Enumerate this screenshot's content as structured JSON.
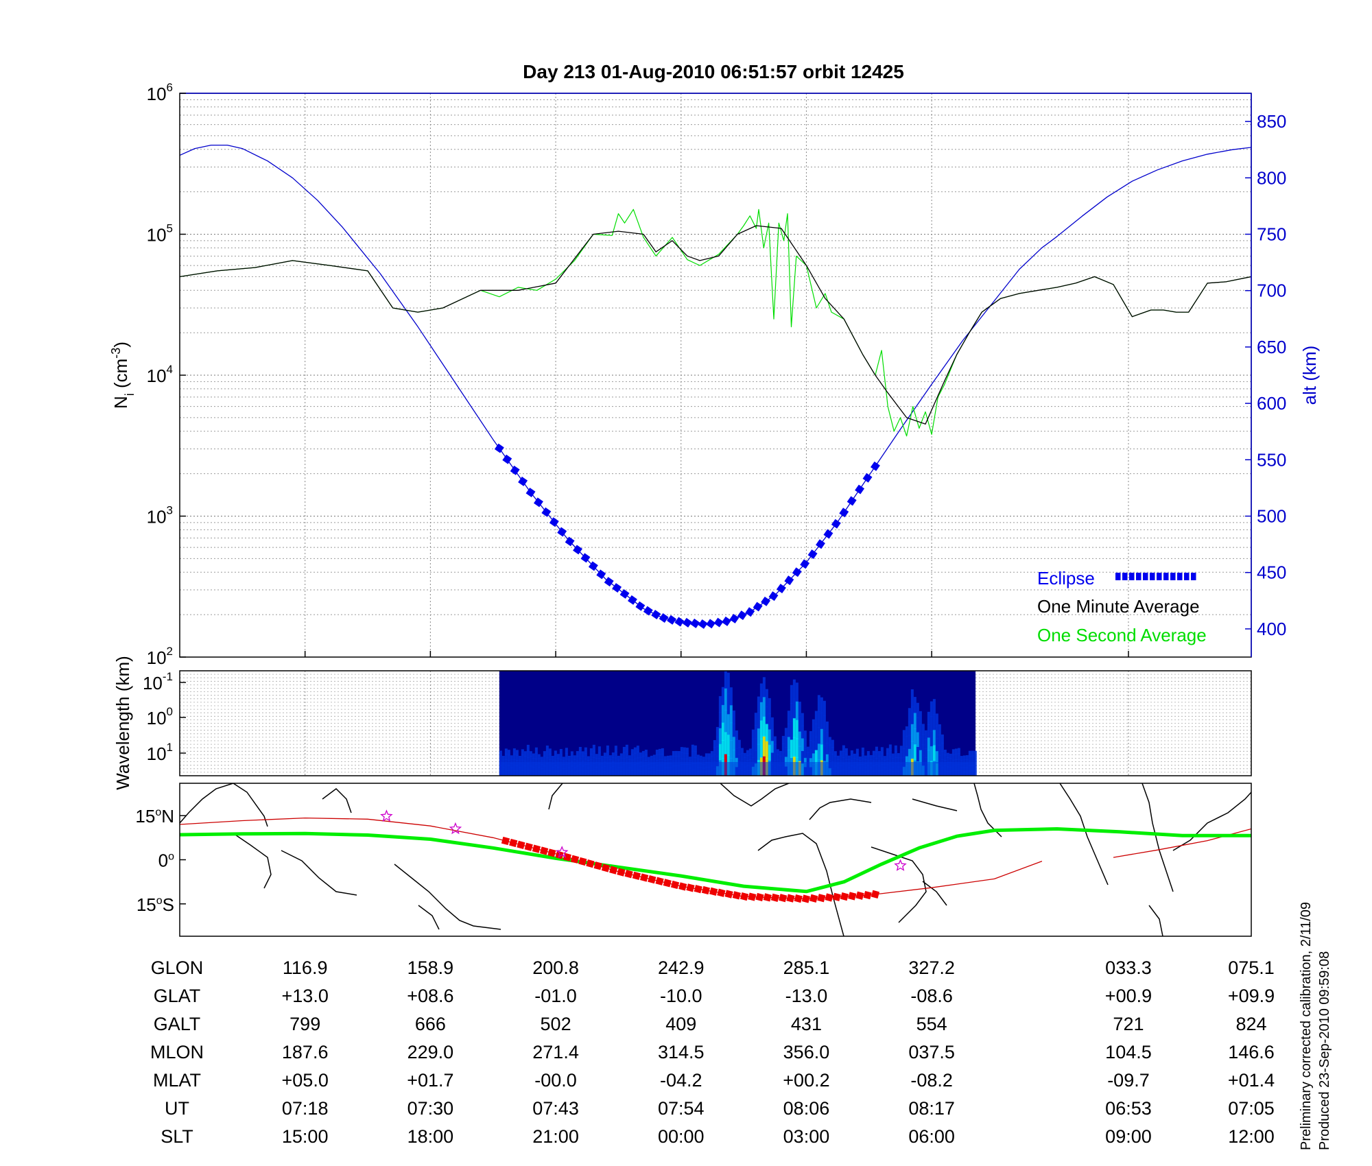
{
  "title": "Day 213  01-Aug-2010 06:51:57   orbit 12425",
  "chart_data": [
    {
      "type": "line",
      "panel": "density",
      "ylabel_main": "N",
      "ylabel_sub": "i",
      "ylabel_unit": " (cm",
      "ylabel_exp": "-3",
      "ylabel_close": ")",
      "yscale": "log",
      "ylim": [
        100,
        1000000
      ],
      "yticks": [
        {
          "base": "10",
          "exp": "2",
          "value": 100
        },
        {
          "base": "10",
          "exp": "3",
          "value": 1000
        },
        {
          "base": "10",
          "exp": "4",
          "value": 10000
        },
        {
          "base": "10",
          "exp": "5",
          "value": 100000
        },
        {
          "base": "10",
          "exp": "6",
          "value": 1000000
        }
      ],
      "y2label": "alt (km)",
      "y2lim": [
        375,
        875
      ],
      "y2ticks": [
        400,
        450,
        500,
        550,
        600,
        650,
        700,
        750,
        800,
        850
      ],
      "xlim": [
        0,
        8.55
      ],
      "legend_position": "bottom-right",
      "series": [
        {
          "name": "One Minute Average",
          "color": "#000000",
          "x": [
            0,
            0.3,
            0.6,
            0.9,
            1.2,
            1.5,
            1.7,
            1.9,
            2.1,
            2.4,
            2.7,
            3.0,
            3.3,
            3.5,
            3.7,
            3.8,
            3.93,
            4.05,
            4.15,
            4.3,
            4.45,
            4.6,
            4.8,
            5.0,
            5.15,
            5.3,
            5.45,
            5.55,
            5.65,
            5.8,
            5.95,
            6.1,
            6.2,
            6.3,
            6.4,
            6.55,
            6.7,
            6.85,
            7.0,
            7.15,
            7.3,
            7.45,
            7.6,
            7.75,
            7.85,
            7.95,
            8.05,
            8.2,
            8.35,
            8.55
          ],
          "y": [
            50000,
            55000,
            58000,
            65000,
            60000,
            55000,
            30000,
            28000,
            30000,
            40000,
            40000,
            45000,
            100000,
            105000,
            100000,
            75000,
            90000,
            70000,
            65000,
            70000,
            100000,
            115000,
            110000,
            60000,
            35000,
            25000,
            14000,
            10000,
            7500,
            5000,
            4500,
            9000,
            14000,
            20000,
            28000,
            35000,
            38000,
            40000,
            42000,
            45000,
            50000,
            44000,
            26000,
            29000,
            29000,
            28000,
            28000,
            45000,
            46000,
            50000
          ]
        },
        {
          "name": "One Second Average",
          "color": "#00dd00",
          "x": [
            0,
            0.3,
            0.6,
            0.9,
            1.2,
            1.5,
            1.7,
            1.9,
            2.1,
            2.4,
            2.55,
            2.7,
            2.85,
            3.0,
            3.15,
            3.3,
            3.45,
            3.5,
            3.55,
            3.62,
            3.7,
            3.8,
            3.93,
            4.05,
            4.15,
            4.3,
            4.45,
            4.5,
            4.55,
            4.6,
            4.62,
            4.66,
            4.7,
            4.74,
            4.78,
            4.82,
            4.85,
            4.88,
            4.92,
            5.0,
            5.08,
            5.15,
            5.2,
            5.3,
            5.45,
            5.55,
            5.6,
            5.65,
            5.7,
            5.75,
            5.8,
            5.85,
            5.9,
            5.95,
            6.0,
            6.05,
            6.1,
            6.2,
            6.3,
            6.4,
            6.55,
            6.7,
            6.85,
            7.0,
            7.15,
            7.3,
            7.45,
            7.6,
            7.75,
            7.85,
            7.95,
            8.05,
            8.2,
            8.35,
            8.55
          ],
          "y": [
            50000,
            55000,
            58000,
            65000,
            60000,
            55000,
            30000,
            28000,
            30000,
            40000,
            36000,
            42000,
            40000,
            48000,
            65000,
            100000,
            98000,
            140000,
            120000,
            150000,
            95000,
            70000,
            95000,
            66000,
            60000,
            72000,
            100000,
            115000,
            135000,
            110000,
            150000,
            80000,
            120000,
            25000,
            120000,
            90000,
            140000,
            22000,
            70000,
            60000,
            30000,
            38000,
            28000,
            25000,
            14000,
            10000,
            15000,
            6000,
            4000,
            5000,
            3700,
            6000,
            4200,
            5500,
            3800,
            7000,
            8500,
            14000,
            20000,
            28000,
            35000,
            38000,
            40000,
            42000,
            45000,
            50000,
            44000,
            26000,
            29000,
            29000,
            28000,
            28000,
            45000,
            46000,
            50000
          ]
        },
        {
          "name": "alt",
          "color": "#0000cc",
          "axis": "y2",
          "x": [
            0,
            0.12,
            0.25,
            0.38,
            0.5,
            0.7,
            0.9,
            1.1,
            1.3,
            1.6,
            1.9,
            2.2,
            2.5,
            2.8,
            3.1,
            3.4,
            3.7,
            3.85,
            4.0,
            4.2,
            4.38,
            4.55,
            4.75,
            5.0,
            5.25,
            5.5,
            5.75,
            6.0,
            6.25,
            6.5,
            6.7,
            6.88,
            7.0,
            7.2,
            7.4,
            7.6,
            7.8,
            8.0,
            8.2,
            8.4,
            8.55
          ],
          "y": [
            820,
            826,
            829,
            829,
            826,
            815,
            800,
            780,
            756,
            715,
            668,
            618,
            568,
            521,
            479,
            444,
            418,
            410,
            406,
            404,
            407,
            415,
            430,
            459,
            495,
            536,
            577,
            617,
            656,
            691,
            719,
            738,
            748,
            766,
            783,
            797,
            807,
            815,
            821,
            825,
            827
          ]
        }
      ],
      "eclipse": {
        "name": "Eclipse",
        "color": "#0000ee",
        "x_start": 2.55,
        "x_end": 5.55
      },
      "gaps": [
        [
          6.88,
          7.45
        ]
      ]
    },
    {
      "type": "heatmap",
      "panel": "spectrogram",
      "ylabel": "Wavelength (km)",
      "yticks": [
        {
          "base": "10",
          "exp": "-1"
        },
        {
          "base": "10",
          "exp": "0"
        },
        {
          "base": "10",
          "exp": "1"
        }
      ],
      "x_range": [
        2.55,
        6.35
      ],
      "colorscale": [
        "#000088",
        "#0033dd",
        "#00aaff",
        "#00ffff",
        "#ffff00",
        "#ff0000"
      ],
      "active_bands": [
        {
          "x": 4.35,
          "strength": 1.0
        },
        {
          "x": 4.65,
          "strength": 0.95
        },
        {
          "x": 4.9,
          "strength": 0.9
        },
        {
          "x": 5.1,
          "strength": 0.7
        },
        {
          "x": 5.85,
          "strength": 0.75
        },
        {
          "x": 6.0,
          "strength": 0.6
        }
      ]
    },
    {
      "type": "line",
      "panel": "map",
      "lat_ticks": [
        {
          "value": 15,
          "label": "15",
          "suffix": "N"
        },
        {
          "value": 0,
          "label": "0",
          "suffix": ""
        },
        {
          "value": -15,
          "label": "15",
          "suffix": "S"
        }
      ],
      "ylim": [
        -26,
        26
      ],
      "series": [
        {
          "name": "track",
          "color": "#cc0000",
          "x": [
            0,
            0.5,
            1.0,
            1.5,
            2.0,
            2.5,
            3.0,
            3.5,
            4.0,
            4.5,
            5.0,
            5.5,
            6.0,
            6.5,
            6.88
          ],
          "y": [
            12,
            13.3,
            14.2,
            13.8,
            11.5,
            7.5,
            2,
            -4,
            -9,
            -12.5,
            -13.3,
            -12,
            -9.5,
            -6.5,
            -0.5
          ]
        },
        {
          "name": "track2",
          "color": "#cc0000",
          "x": [
            7.45,
            7.8,
            8.2,
            8.55
          ],
          "y": [
            0.8,
            3.3,
            6.5,
            10.5
          ]
        },
        {
          "name": "magnetic equator",
          "color": "#00ee00",
          "x": [
            0,
            0.5,
            1.0,
            1.5,
            2.0,
            2.5,
            3.0,
            3.5,
            4.0,
            4.5,
            5.0,
            5.3,
            5.6,
            5.9,
            6.2,
            6.5,
            7.0,
            7.5,
            8.0,
            8.55
          ],
          "y": [
            8.5,
            8.8,
            8.9,
            8.4,
            7,
            4,
            0.5,
            -2.5,
            -5.5,
            -9,
            -10.8,
            -7.5,
            -1.5,
            4,
            8,
            10,
            10.5,
            9.5,
            8.2,
            8.2
          ]
        }
      ],
      "stars": [
        {
          "x": 1.65,
          "y": 14.8
        },
        {
          "x": 2.2,
          "y": 10.5
        },
        {
          "x": 3.05,
          "y": 2.5
        },
        {
          "x": 5.75,
          "y": -2
        }
      ],
      "eclipse": {
        "color": "#ee0000",
        "x_start": 2.6,
        "x_end": 5.55
      }
    }
  ],
  "table": {
    "row_labels": [
      "GLON",
      "GLAT",
      "GALT",
      "MLON",
      "MLAT",
      "UT",
      "SLT"
    ],
    "x_positions": [
      1,
      2,
      3,
      4,
      5,
      6,
      7.57,
      8.55
    ],
    "columns": [
      [
        "116.9",
        "+13.0",
        "799",
        "187.6",
        "+05.0",
        "07:18",
        "15:00"
      ],
      [
        "158.9",
        "+08.6",
        "666",
        "229.0",
        "+01.7",
        "07:30",
        "18:00"
      ],
      [
        "200.8",
        "-01.0",
        "502",
        "271.4",
        "-00.0",
        "07:43",
        "21:00"
      ],
      [
        "242.9",
        "-10.0",
        "409",
        "314.5",
        "-04.2",
        "07:54",
        "00:00"
      ],
      [
        "285.1",
        "-13.0",
        "431",
        "356.0",
        "+00.2",
        "08:06",
        "03:00"
      ],
      [
        "327.2",
        "-08.6",
        "554",
        "037.5",
        "-08.2",
        "08:17",
        "06:00"
      ],
      [
        "033.3",
        "+00.9",
        "721",
        "104.5",
        "-09.7",
        "06:53",
        "09:00"
      ],
      [
        "075.1",
        "+09.9",
        "824",
        "146.6",
        "+01.4",
        "07:05",
        "12:00"
      ]
    ]
  },
  "footer": {
    "line1": "Preliminary corrected calibration, 2/11/09",
    "line2": "Produced 23-Sep-2010 09:59:08"
  },
  "colors": {
    "alt_axis": "#0000cc",
    "minute_avg": "#000000",
    "second_avg": "#00dd00",
    "eclipse": "#0000ee",
    "map_eclipse": "#ee0000",
    "star": "#cc00cc"
  }
}
